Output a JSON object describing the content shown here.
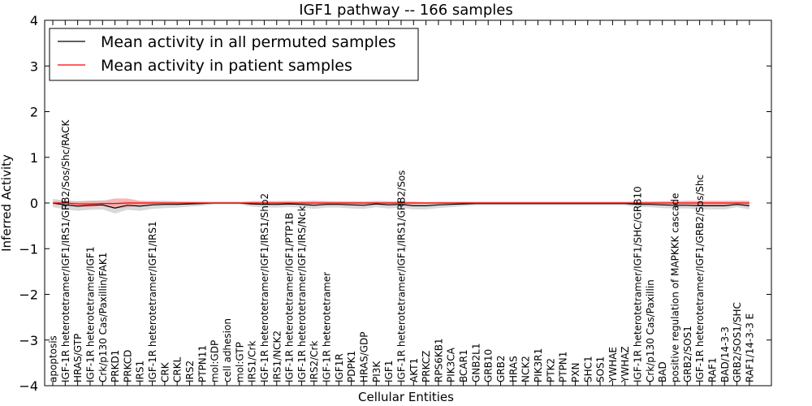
{
  "chart_data": {
    "type": "line",
    "title": "IGF1 pathway -- 166 samples",
    "xlabel": "Cellular Entities",
    "ylabel": "Inferred Activity",
    "ylim": [
      -4,
      4
    ],
    "yticks": [
      -4,
      -3,
      -2,
      -1,
      0,
      1,
      2,
      3,
      4
    ],
    "ytick_labels": [
      "−4",
      "−3",
      "−2",
      "−1",
      "0",
      "1",
      "2",
      "3",
      "4"
    ],
    "grid": false,
    "legend_position": "top-left",
    "categories": [
      "apoptosis",
      "IGF-1R heterotetramer/IGF1/IRS1/GRB2/Sos/Shc/RACK",
      "HRAS/GTP",
      "IGF-1R heterotetramer/IGF1",
      "Crk/p130 Cas/Paxillin/FAK1",
      "PRKD1",
      "PRKCD",
      "IRS1",
      "IGF-1R heterotetramer/IGF1/IRS1",
      "CRK",
      "CRKL",
      "IRS2",
      "PTPN11",
      "mol:GDP",
      "cell adhesion",
      "mol:GTP",
      "IRS1/Crk",
      "IGF-1R heterotetramer/IGF1/IRS1/Shp2",
      "IRS1/NCK2",
      "IGF-1R heterotetramer/IGF1/PTP1B",
      "IGF-1R heterotetramer/IGF1/IRS/Nck",
      "IRS2/Crk",
      "IGF-1R heterotetramer",
      "IGF1R",
      "PDPK1",
      "HRAS/GDP",
      "PI3K",
      "IGF1",
      "IGF-1R heterotetramer/IGF1/IRS1/GRB2/Sos",
      "AKT1",
      "PRKCZ",
      "RPS6KB1",
      "PIK3CA",
      "BCAR1",
      "GNB2L1",
      "GRB10",
      "GRB2",
      "HRAS",
      "NCK2",
      "PIK3R1",
      "PTK2",
      "PTPN1",
      "PXN",
      "SHC1",
      "SOS1",
      "YWHAE",
      "YWHAZ",
      "IGF-1R heterotetramer/IGF1/SHC/GRB10",
      "Crk/p130 Cas/Paxillin",
      "BAD",
      "positive regulation of MAPKKK cascade",
      "GRB2/SOS1",
      "IGF-1R heterotetramer/IGF1/GRB2/Sos/Shc",
      "RAF1",
      "BAD/14-3-3",
      "GRB2/SOS1/SHC",
      "RAF1/14-3-3 E"
    ],
    "series": [
      {
        "name": "Mean activity in all permuted samples",
        "color": "#000000",
        "band_color": "#cccccc",
        "values": [
          0.0,
          -0.04,
          -0.07,
          -0.05,
          -0.04,
          -0.11,
          -0.05,
          -0.07,
          -0.04,
          -0.03,
          -0.03,
          -0.02,
          -0.01,
          0.0,
          0.0,
          0.0,
          -0.02,
          -0.03,
          -0.03,
          -0.02,
          -0.03,
          -0.05,
          -0.03,
          -0.03,
          -0.04,
          -0.05,
          -0.02,
          -0.04,
          -0.03,
          -0.06,
          -0.06,
          -0.04,
          -0.03,
          -0.02,
          -0.01,
          -0.01,
          -0.01,
          -0.01,
          -0.01,
          -0.01,
          -0.01,
          -0.01,
          -0.01,
          -0.01,
          -0.01,
          -0.01,
          -0.01,
          -0.03,
          -0.03,
          -0.04,
          -0.05,
          -0.05,
          -0.06,
          -0.06,
          -0.06,
          -0.03,
          -0.06
        ],
        "band": [
          0.09,
          0.1,
          0.1,
          0.1,
          0.1,
          0.12,
          0.1,
          0.1,
          0.09,
          0.08,
          0.07,
          0.06,
          0.05,
          0.03,
          0.03,
          0.03,
          0.06,
          0.07,
          0.07,
          0.07,
          0.07,
          0.08,
          0.07,
          0.07,
          0.08,
          0.08,
          0.07,
          0.08,
          0.07,
          0.08,
          0.08,
          0.07,
          0.06,
          0.05,
          0.04,
          0.04,
          0.04,
          0.04,
          0.04,
          0.04,
          0.04,
          0.04,
          0.04,
          0.04,
          0.04,
          0.04,
          0.04,
          0.06,
          0.06,
          0.07,
          0.07,
          0.07,
          0.08,
          0.08,
          0.08,
          0.06,
          0.08
        ]
      },
      {
        "name": "Mean activity in patient samples",
        "color": "#ff0000",
        "band_color": "#f4a6a6",
        "values": [
          0.0,
          0.0,
          -0.02,
          -0.02,
          -0.01,
          -0.01,
          0.0,
          0.0,
          0.0,
          0.0,
          0.0,
          0.0,
          0.0,
          0.0,
          0.0,
          0.0,
          0.0,
          0.0,
          0.0,
          0.0,
          0.0,
          0.0,
          0.0,
          0.0,
          0.0,
          0.0,
          0.0,
          0.0,
          0.0,
          0.0,
          0.0,
          0.0,
          0.0,
          0.0,
          0.0,
          0.0,
          0.0,
          0.0,
          0.0,
          0.0,
          0.0,
          0.0,
          0.0,
          0.0,
          0.0,
          0.0,
          0.0,
          0.0,
          0.0,
          0.0,
          0.0,
          0.0,
          0.0,
          0.0,
          0.0,
          0.0,
          0.0
        ],
        "band": [
          0.04,
          0.05,
          0.06,
          0.07,
          0.06,
          0.11,
          0.1,
          0.05,
          0.04,
          0.03,
          0.03,
          0.02,
          0.01,
          0.01,
          0.01,
          0.01,
          0.04,
          0.04,
          0.04,
          0.04,
          0.04,
          0.05,
          0.04,
          0.03,
          0.03,
          0.03,
          0.03,
          0.03,
          0.03,
          0.03,
          0.02,
          0.02,
          0.02,
          0.02,
          0.02,
          0.02,
          0.02,
          0.02,
          0.02,
          0.02,
          0.02,
          0.02,
          0.02,
          0.02,
          0.02,
          0.02,
          0.02,
          0.03,
          0.03,
          0.04,
          0.04,
          0.05,
          0.05,
          0.05,
          0.05,
          0.05,
          0.05
        ]
      }
    ]
  }
}
